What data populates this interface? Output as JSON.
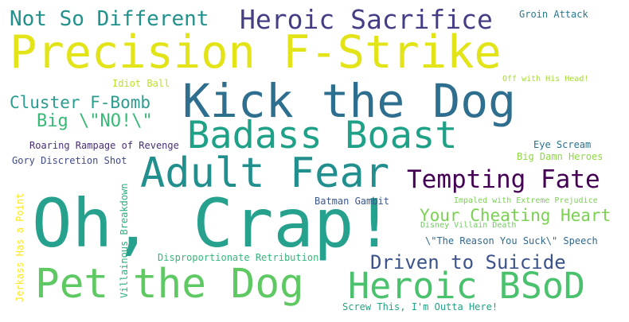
{
  "words": [
    {
      "id": "precision",
      "text": "Precision F-Strike",
      "color": "#e2e418"
    },
    {
      "id": "kick",
      "text": "Kick the Dog",
      "color": "#2e6e8e"
    },
    {
      "id": "oh-crap",
      "text": "Oh, Crap!",
      "color": "#25a18e"
    },
    {
      "id": "adult-fear",
      "text": "Adult Fear",
      "color": "#218f8d"
    },
    {
      "id": "badass",
      "text": "Badass Boast",
      "color": "#1fa187"
    },
    {
      "id": "pet-dog",
      "text": "Pet the Dog",
      "color": "#5ec962"
    },
    {
      "id": "heroic-bsod",
      "text": "Heroic BSoD",
      "color": "#4ac16d"
    },
    {
      "id": "heroic-sacrifice",
      "text": "Heroic Sacrifice",
      "color": "#433e85"
    },
    {
      "id": "not-so-different",
      "text": "Not So Different",
      "color": "#21918c"
    },
    {
      "id": "tempting-fate",
      "text": "Tempting Fate",
      "color": "#440154"
    },
    {
      "id": "driven-suicide",
      "text": "Driven to Suicide",
      "color": "#3b528b"
    },
    {
      "id": "cheating-heart",
      "text": "Your Cheating Heart",
      "color": "#7ad151"
    },
    {
      "id": "cluster",
      "text": "Cluster F-Bomb",
      "color": "#2a9d8f"
    },
    {
      "id": "big-no",
      "text": "Big \\\"NO!\\\"",
      "color": "#38b977"
    },
    {
      "id": "groin",
      "text": "Groin Attack",
      "color": "#2a788e"
    },
    {
      "id": "idiot-ball",
      "text": "Idiot Ball",
      "color": "#bddf26"
    },
    {
      "id": "off-head",
      "text": "Off with His Head!",
      "color": "#a5db36"
    },
    {
      "id": "roaring",
      "text": "Roaring Rampage of Revenge",
      "color": "#472d7b"
    },
    {
      "id": "gory",
      "text": "Gory Discretion Shot",
      "color": "#3e4a89"
    },
    {
      "id": "eye-scream",
      "text": "Eye Scream",
      "color": "#2c728e"
    },
    {
      "id": "big-damn",
      "text": "Big Damn Heroes",
      "color": "#8fd744"
    },
    {
      "id": "batman",
      "text": "Batman Gambit",
      "color": "#39568c"
    },
    {
      "id": "impaled",
      "text": "Impaled with Extreme Prejudice",
      "color": "#7ad151"
    },
    {
      "id": "disney",
      "text": "Disney Villain Death",
      "color": "#6ccd5a"
    },
    {
      "id": "reason",
      "text": "\\\"The Reason You Suck\\\" Speech",
      "color": "#31688e"
    },
    {
      "id": "disproportionate",
      "text": "Disproportionate Retribution",
      "color": "#35b779"
    },
    {
      "id": "screw-this",
      "text": "Screw This, I'm Outta Here!",
      "color": "#20a486"
    },
    {
      "id": "jerkass",
      "text": "Jerkass Has a Point",
      "color": "#fde725"
    },
    {
      "id": "vill-breakdown",
      "text": "Villainous Breakdown",
      "color": "#29af7f"
    }
  ]
}
